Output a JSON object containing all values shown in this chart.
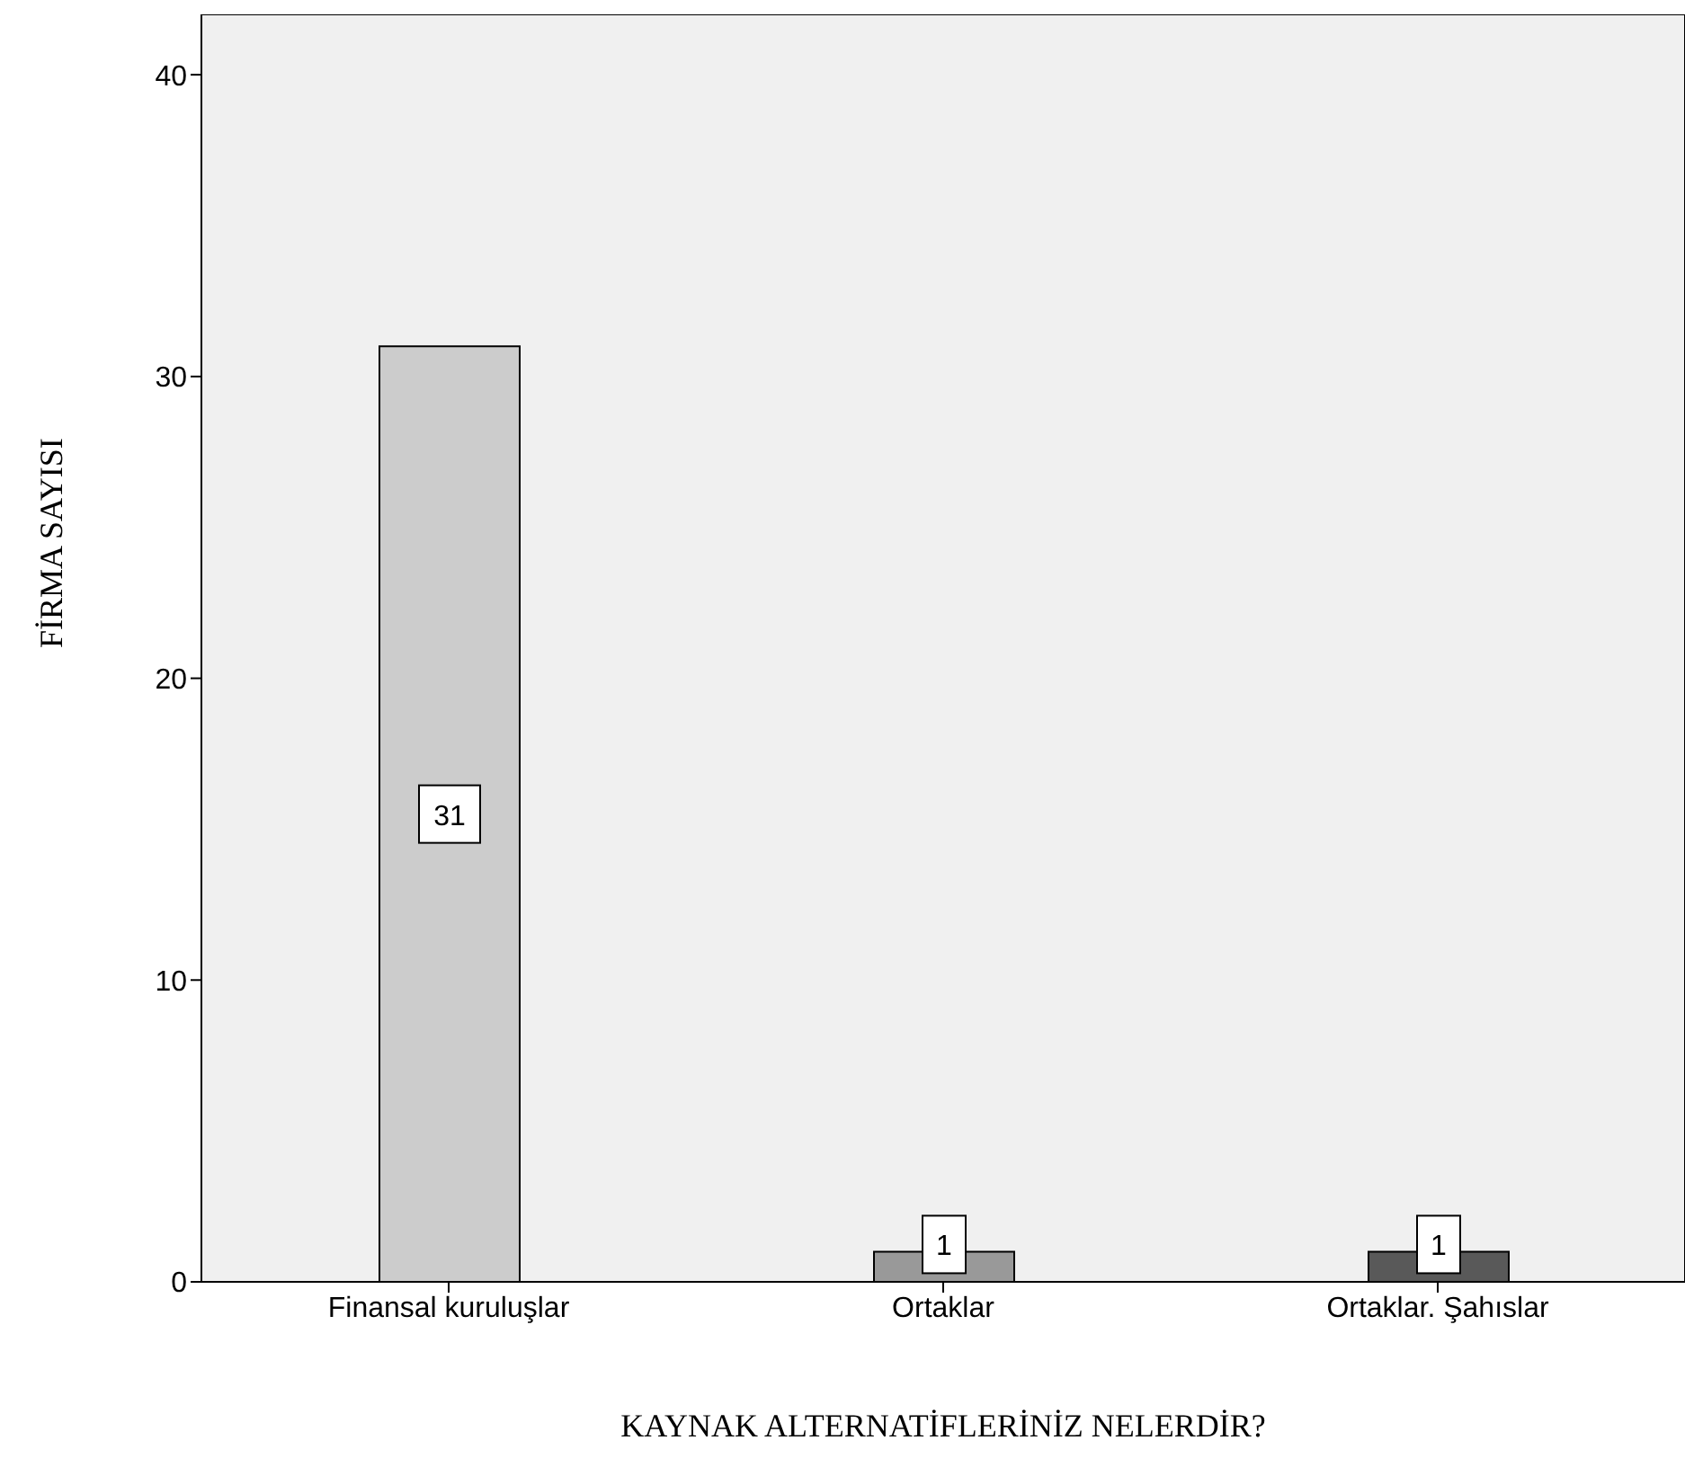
{
  "chart_data": {
    "type": "bar",
    "xlabel": "KAYNAK ALTERNATİFLERİNİZ NELERDİR?",
    "ylabel": "FİRMA  SAYISI",
    "categories": [
      "Finansal kuruluşlar",
      "Ortaklar",
      "Ortaklar. Şahıslar"
    ],
    "values": [
      31,
      1,
      1
    ],
    "colors": [
      "#cccccc",
      "#999999",
      "#595959"
    ],
    "ylim": [
      0,
      42
    ],
    "yticks": [
      0,
      10,
      20,
      30,
      40
    ],
    "data_labels": true
  }
}
